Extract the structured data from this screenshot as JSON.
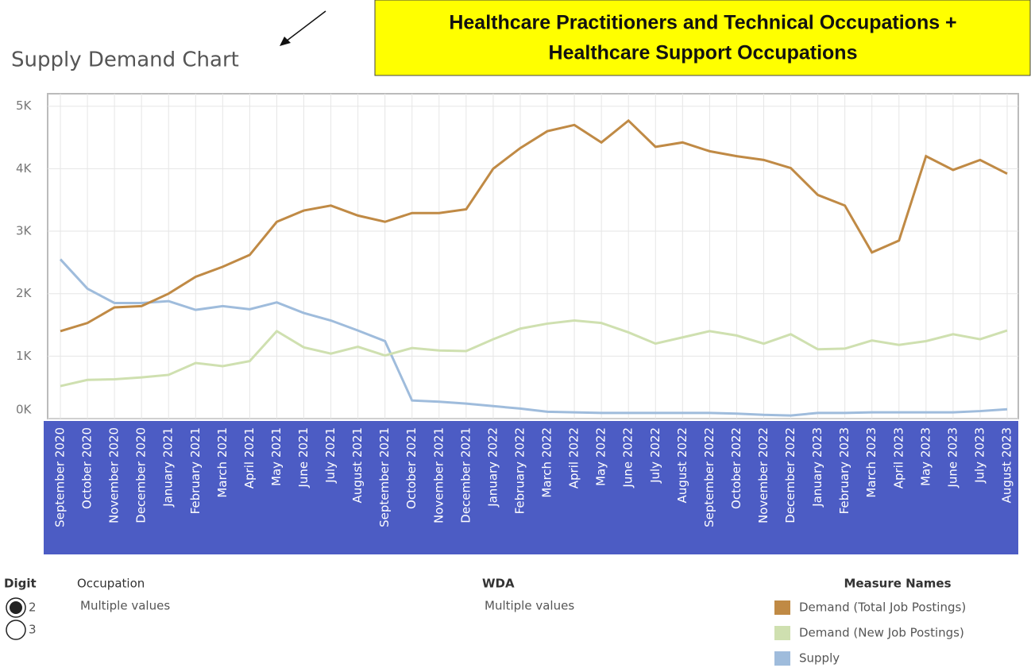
{
  "chart_data": {
    "type": "line",
    "title": "Supply Demand Chart",
    "categories": [
      "September 2020",
      "October 2020",
      "November 2020",
      "December 2020",
      "January 2021",
      "February 2021",
      "March 2021",
      "April 2021",
      "May 2021",
      "June 2021",
      "July 2021",
      "August 2021",
      "September 2021",
      "October 2021",
      "November 2021",
      "December 2021",
      "January 2022",
      "February 2022",
      "March 2022",
      "April 2022",
      "May 2022",
      "June 2022",
      "July 2022",
      "August 2022",
      "September 2022",
      "October 2022",
      "November 2022",
      "December 2022",
      "January 2023",
      "February 2023",
      "March 2023",
      "April 2023",
      "May 2023",
      "June 2023",
      "July 2023",
      "August 2023"
    ],
    "series": [
      {
        "name": "Demand (Total Job Postings)",
        "color": "#c08a45",
        "values": [
          1400,
          1530,
          1780,
          1800,
          2000,
          2270,
          2430,
          2620,
          3150,
          3330,
          3410,
          3250,
          3150,
          3290,
          3290,
          3350,
          4000,
          4330,
          4600,
          4700,
          4420,
          4770,
          4350,
          4420,
          4280,
          4200,
          4140,
          4010,
          3580,
          3410,
          2660,
          2850,
          4200,
          3980,
          4140,
          3920
        ]
      },
      {
        "name": "Demand (New Job Postings)",
        "color": "#cfe0b0",
        "values": [
          520,
          620,
          630,
          660,
          700,
          890,
          840,
          920,
          1400,
          1140,
          1040,
          1150,
          1010,
          1130,
          1090,
          1080,
          1270,
          1440,
          1520,
          1570,
          1530,
          1380,
          1200,
          1300,
          1400,
          1330,
          1200,
          1350,
          1110,
          1120,
          1250,
          1180,
          1240,
          1350,
          1270,
          1410
        ]
      },
      {
        "name": "Supply",
        "color": "#9fbcdc",
        "values": [
          2550,
          2080,
          1850,
          1850,
          1880,
          1740,
          1800,
          1750,
          1860,
          1690,
          1570,
          1410,
          1240,
          290,
          270,
          240,
          200,
          160,
          110,
          100,
          90,
          90,
          90,
          90,
          90,
          80,
          60,
          50,
          90,
          90,
          100,
          100,
          100,
          100,
          120,
          150
        ]
      }
    ],
    "ylim": [
      0,
      5200
    ],
    "yticks": [
      {
        "value": 0,
        "label": "0K"
      },
      {
        "value": 1000,
        "label": "1K"
      },
      {
        "value": 2000,
        "label": "2K"
      },
      {
        "value": 3000,
        "label": "3K"
      },
      {
        "value": 4000,
        "label": "4K"
      },
      {
        "value": 5000,
        "label": "5K"
      }
    ],
    "grid": true,
    "legend_title": "Measure Names"
  },
  "banner": {
    "lines": [
      "Healthcare Practitioners and Technical Occupations +",
      "Healthcare Support Occupations"
    ]
  },
  "digit_filter": {
    "label": "Digit",
    "options": [
      "2",
      "3"
    ],
    "selected": "2"
  },
  "occupation_filter": {
    "label": "Occupation",
    "value": "Multiple values"
  },
  "wda_filter": {
    "label": "WDA",
    "value": "Multiple values"
  }
}
